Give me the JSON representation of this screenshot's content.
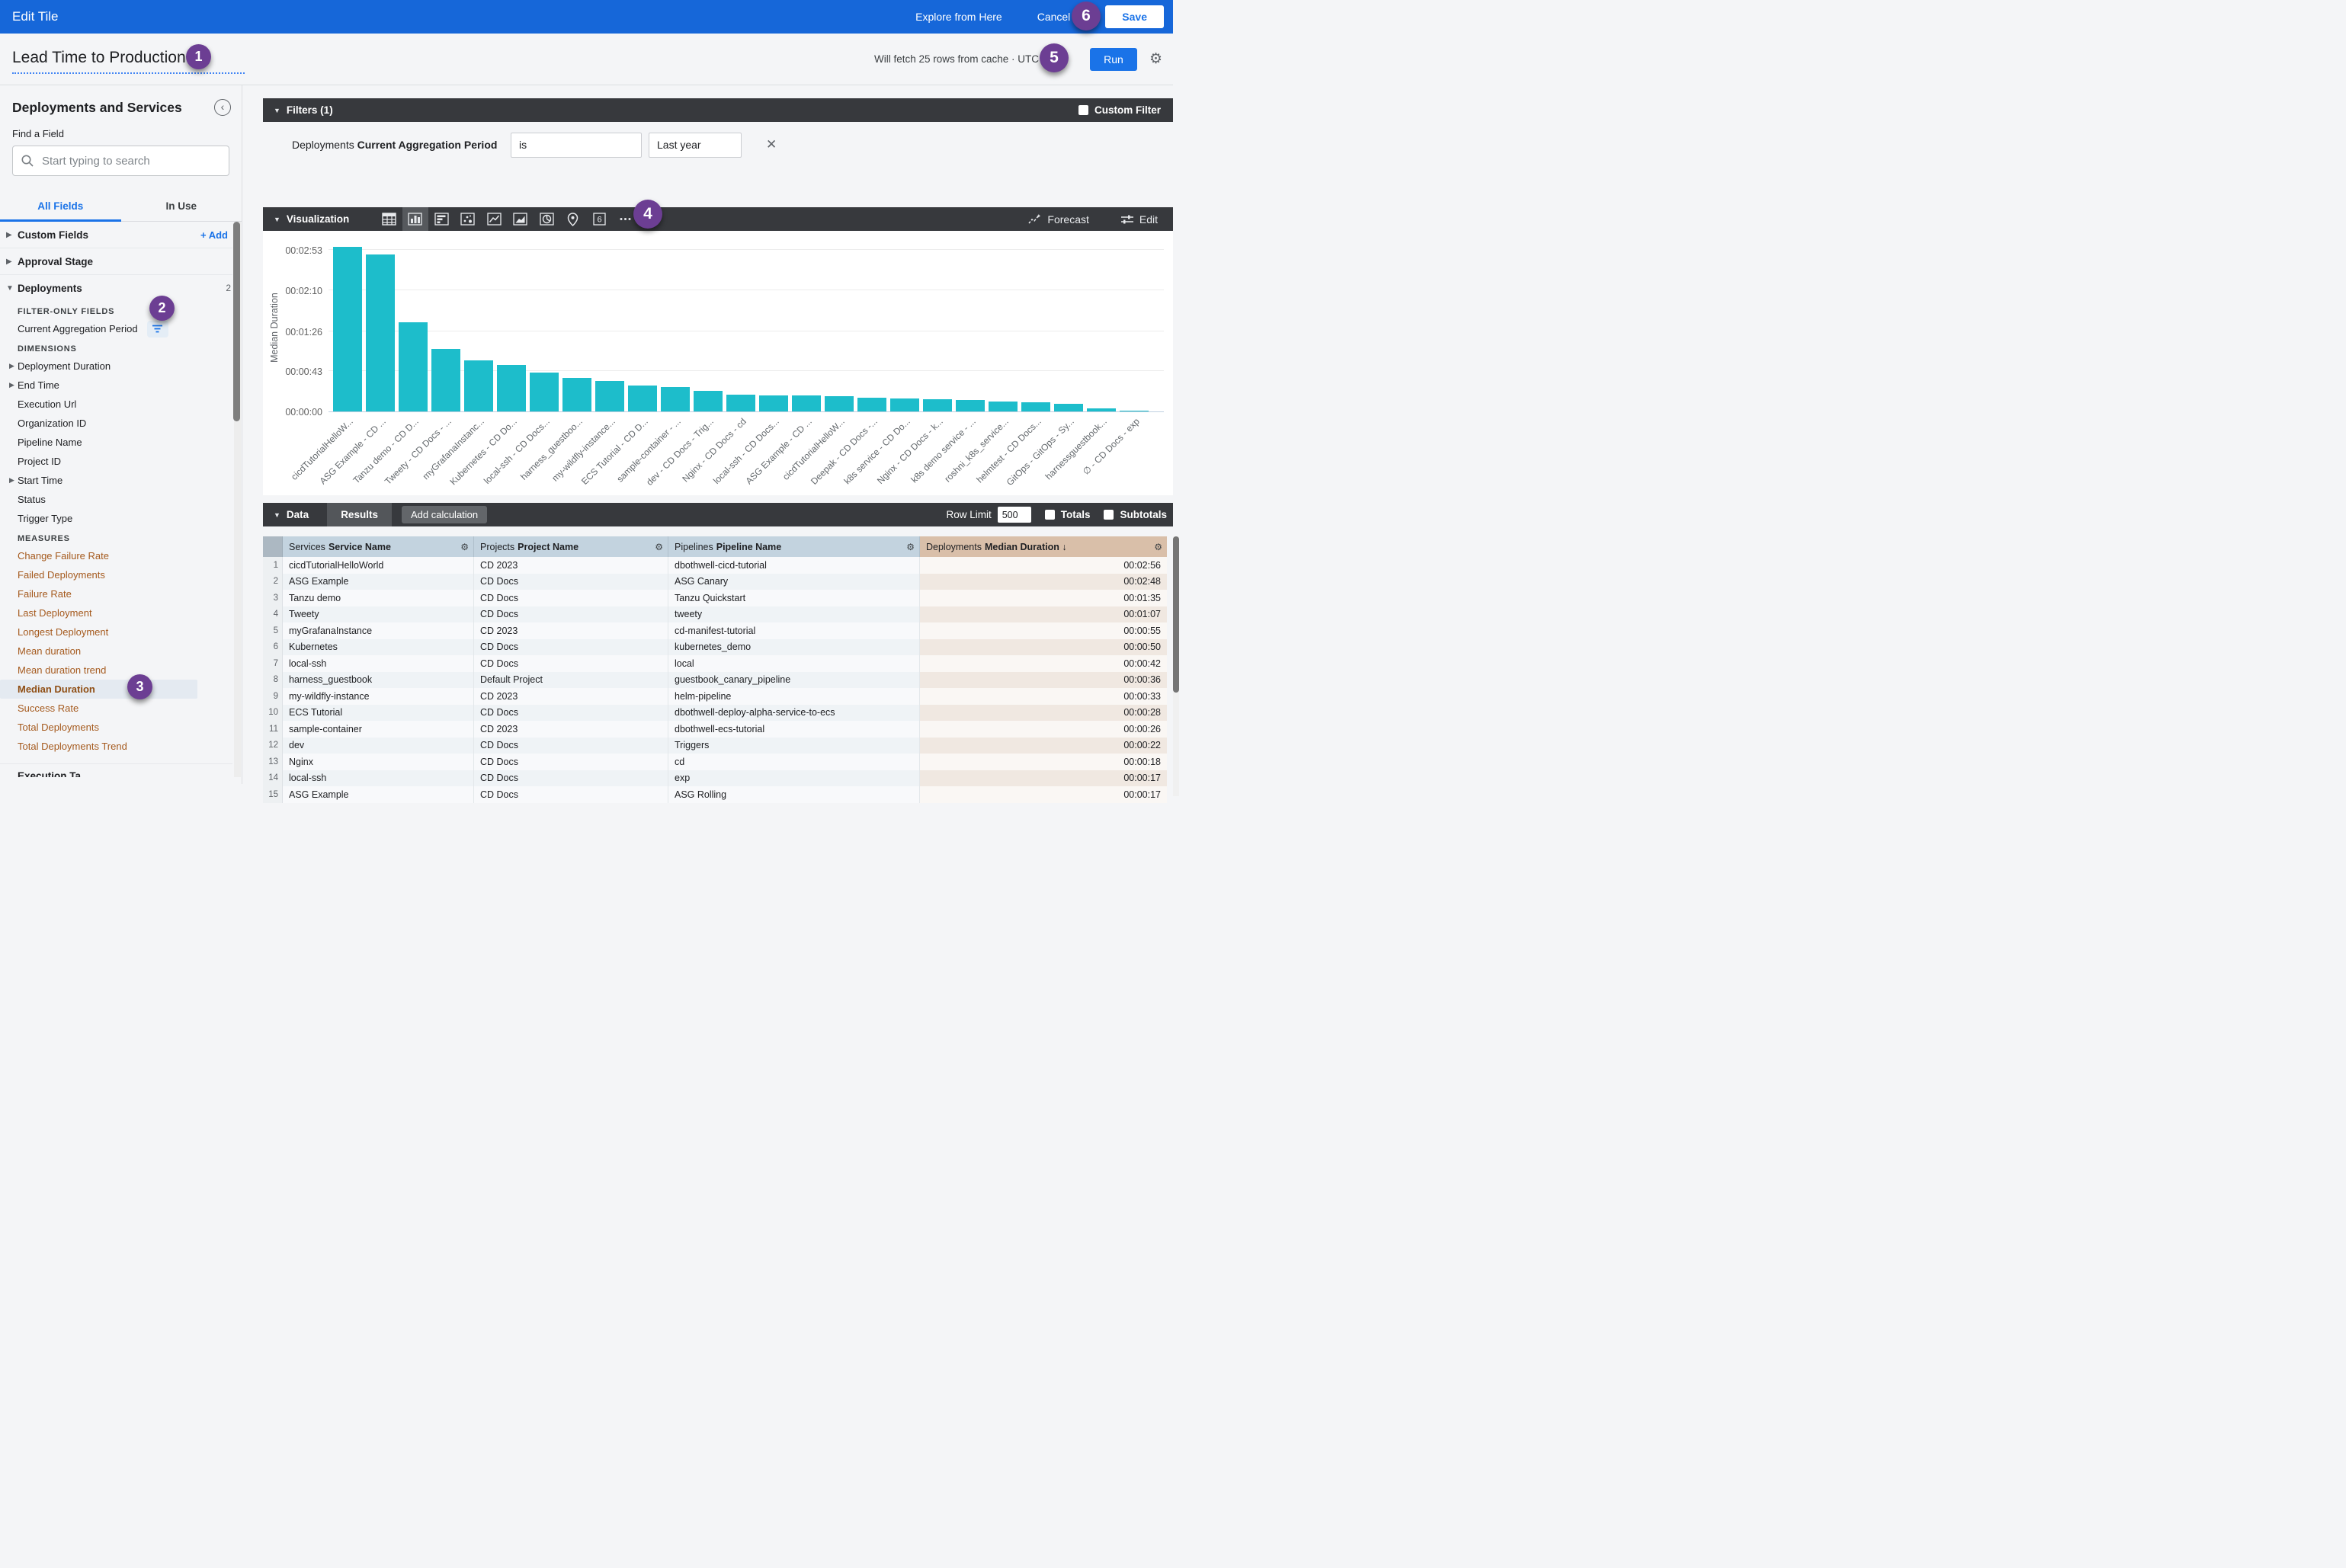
{
  "topbar": {
    "title": "Edit Tile",
    "explore": "Explore from Here",
    "cancel": "Cancel",
    "save": "Save"
  },
  "titlebar": {
    "tile_title": "Lead Time to Production",
    "fetch_note": "Will fetch 25 rows from cache · UTC",
    "timezone_label": "Tim",
    "run_label": "Run"
  },
  "sidebar": {
    "panel_title": "Deployments and Services",
    "find_label": "Find a Field",
    "search_placeholder": "Start typing to search",
    "tabs": {
      "all": "All Fields",
      "in_use": "In Use"
    },
    "groups": {
      "custom_fields": {
        "label": "Custom Fields",
        "action": "+ Add"
      },
      "approval_stage": {
        "label": "Approval Stage"
      },
      "deployments": {
        "label": "Deployments",
        "count": "2"
      }
    },
    "sections": [
      {
        "heading": "FILTER-ONLY FIELDS",
        "items": [
          {
            "label": "Current Aggregation Period",
            "filter": true
          }
        ]
      },
      {
        "heading": "DIMENSIONS",
        "items": [
          {
            "label": "Deployment Duration",
            "caret": true
          },
          {
            "label": "End Time",
            "caret": true
          },
          {
            "label": "Execution Url"
          },
          {
            "label": "Organization ID"
          },
          {
            "label": "Pipeline Name"
          },
          {
            "label": "Project ID"
          },
          {
            "label": "Start Time",
            "caret": true
          },
          {
            "label": "Status"
          },
          {
            "label": "Trigger Type"
          }
        ]
      },
      {
        "heading": "MEASURES",
        "measure": true,
        "items": [
          {
            "label": "Change Failure Rate"
          },
          {
            "label": "Failed Deployments"
          },
          {
            "label": "Failure Rate"
          },
          {
            "label": "Last Deployment"
          },
          {
            "label": "Longest Deployment"
          },
          {
            "label": "Mean duration"
          },
          {
            "label": "Mean duration trend"
          },
          {
            "label": "Median Duration",
            "selected": true
          },
          {
            "label": "Success Rate"
          },
          {
            "label": "Total Deployments"
          },
          {
            "label": "Total Deployments Trend"
          }
        ]
      }
    ],
    "clipped_group": "Execution Ta"
  },
  "filters": {
    "title": "Filters (1)",
    "custom_filter_label": "Custom Filter",
    "row": {
      "field_prefix": "Deployments",
      "field_bold": "Current Aggregation Period",
      "operator": "is",
      "value": "Last year"
    }
  },
  "viz": {
    "title": "Visualization",
    "icons": [
      "table",
      "column",
      "bar",
      "scatter",
      "line",
      "area",
      "pie",
      "map",
      "single-value",
      "more"
    ],
    "selected_icon": "column",
    "forecast": "Forecast",
    "edit": "Edit"
  },
  "chart_data": {
    "type": "bar",
    "title": "",
    "xlabel": "",
    "ylabel": "Median Duration",
    "legend": "none",
    "grid": "horizontal",
    "bar_color": "#1DBDCB",
    "yticks": [
      "00:00:00",
      "00:00:43",
      "00:01:26",
      "00:02:10",
      "00:02:53"
    ],
    "ytick_seconds": [
      0,
      43,
      86,
      130,
      173
    ],
    "ylim_seconds": [
      0,
      181
    ],
    "categories": [
      "cicdTutorialHelloW...",
      "ASG Example - CD ...",
      "Tanzu demo - CD D...",
      "Tweety - CD Docs - ...",
      "myGrafanaInstanc...",
      "Kubernetes - CD Do...",
      "local-ssh - CD Docs...",
      "harness_guestboo...",
      "my-wildfly-instance...",
      "ECS Tutorial - CD D...",
      "sample-container - ...",
      "dev - CD Docs - Trig...",
      "Nginx - CD Docs - cd",
      "local-ssh - CD Docs...",
      "ASG Example - CD ...",
      "cicdTutorialHelloW...",
      "Deepak - CD Docs -...",
      "k8s service - CD Do...",
      "Nginx - CD Docs - k...",
      "k8s demo service - ...",
      "roshni_k8s_service...",
      "helmtest - CD Docs...",
      "GitOps - GitOps - Sy...",
      "harnessguestbook...",
      "∅ - CD Docs - exp"
    ],
    "values_seconds": [
      176,
      168,
      95,
      67,
      55,
      50,
      42,
      36,
      33,
      28,
      26,
      22,
      18,
      17,
      17,
      16,
      15,
      14,
      13,
      12,
      11,
      10,
      8,
      3,
      1
    ],
    "visible_value_labels": [
      "00:02:56",
      "00:02:48",
      "00:01:35",
      "00:01:07",
      "00:00:55",
      "00:00:50",
      "00:00:42",
      "00:00:36",
      "00:00:33",
      "00:00:28",
      "00:00:26",
      "00:00:22",
      "00:00:18",
      "00:00:17",
      "00:00:17"
    ]
  },
  "data_section": {
    "title": "Data",
    "results_tab": "Results",
    "add_calculation": "Add calculation",
    "row_limit_label": "Row Limit",
    "row_limit_value": "500",
    "totals_label": "Totals",
    "subtotals_label": "Subtotals"
  },
  "table": {
    "columns": [
      {
        "view": "Services",
        "field": "Service Name"
      },
      {
        "view": "Projects",
        "field": "Project Name"
      },
      {
        "view": "Pipelines",
        "field": "Pipeline Name"
      },
      {
        "view": "Deployments",
        "field": "Median Duration",
        "sort": "desc"
      }
    ],
    "rows": [
      [
        "1",
        "cicdTutorialHelloWorld",
        "CD 2023",
        "dbothwell-cicd-tutorial",
        "00:02:56"
      ],
      [
        "2",
        "ASG Example",
        "CD Docs",
        "ASG Canary",
        "00:02:48"
      ],
      [
        "3",
        "Tanzu demo",
        "CD Docs",
        "Tanzu Quickstart",
        "00:01:35"
      ],
      [
        "4",
        "Tweety",
        "CD Docs",
        "tweety",
        "00:01:07"
      ],
      [
        "5",
        "myGrafanaInstance",
        "CD 2023",
        "cd-manifest-tutorial",
        "00:00:55"
      ],
      [
        "6",
        "Kubernetes",
        "CD Docs",
        "kubernetes_demo",
        "00:00:50"
      ],
      [
        "7",
        "local-ssh",
        "CD Docs",
        "local",
        "00:00:42"
      ],
      [
        "8",
        "harness_guestbook",
        "Default Project",
        "guestbook_canary_pipeline",
        "00:00:36"
      ],
      [
        "9",
        "my-wildfly-instance",
        "CD 2023",
        "helm-pipeline",
        "00:00:33"
      ],
      [
        "10",
        "ECS Tutorial",
        "CD Docs",
        "dbothwell-deploy-alpha-service-to-ecs",
        "00:00:28"
      ],
      [
        "11",
        "sample-container",
        "CD 2023",
        "dbothwell-ecs-tutorial",
        "00:00:26"
      ],
      [
        "12",
        "dev",
        "CD Docs",
        "Triggers",
        "00:00:22"
      ],
      [
        "13",
        "Nginx",
        "CD Docs",
        "cd",
        "00:00:18"
      ],
      [
        "14",
        "local-ssh",
        "CD Docs",
        "exp",
        "00:00:17"
      ],
      [
        "15",
        "ASG Example",
        "CD Docs",
        "ASG Rolling",
        "00:00:17"
      ]
    ]
  },
  "badges": [
    "1",
    "2",
    "3",
    "4",
    "5",
    "6"
  ],
  "colors": {
    "topbar_blue": "#1667D9",
    "accent_blue": "#1A73E8",
    "bar_teal": "#1DBDCB",
    "dark_bar": "#37393D",
    "badge_purple": "#6C3E93",
    "measure_orange": "#A55A1E",
    "dim_header": "#C3D3DF",
    "measure_header": "#D9BFA9"
  }
}
